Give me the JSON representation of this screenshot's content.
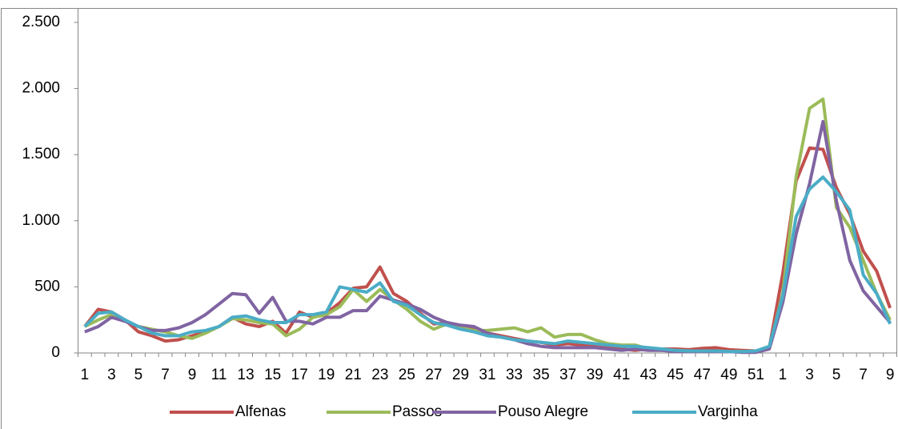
{
  "chart_data": {
    "type": "line",
    "categories": [
      "1",
      null,
      "3",
      null,
      "5",
      null,
      "7",
      null,
      "9",
      null,
      "11",
      null,
      "13",
      null,
      "15",
      null,
      "17",
      null,
      "19",
      null,
      "21",
      null,
      "23",
      null,
      "25",
      null,
      "27",
      null,
      "29",
      null,
      "31",
      null,
      "33",
      null,
      "35",
      null,
      "37",
      null,
      "39",
      null,
      "41",
      null,
      "43",
      null,
      "45",
      null,
      "47",
      null,
      "49",
      null,
      "51",
      null,
      "1",
      null,
      "3",
      null,
      "5",
      null,
      "7",
      null,
      "9"
    ],
    "series": [
      {
        "name": "Alfenas",
        "color": "#c0504d",
        "values": [
          200,
          330,
          310,
          250,
          160,
          130,
          90,
          100,
          130,
          160,
          200,
          270,
          220,
          200,
          240,
          150,
          310,
          270,
          300,
          380,
          490,
          500,
          650,
          450,
          390,
          300,
          220,
          230,
          200,
          180,
          150,
          130,
          110,
          90,
          80,
          60,
          70,
          60,
          50,
          40,
          30,
          20,
          30,
          30,
          30,
          25,
          35,
          40,
          25,
          20,
          15,
          40,
          600,
          1300,
          1550,
          1540,
          1250,
          1050,
          770,
          620,
          340
        ]
      },
      {
        "name": "Passos",
        "color": "#9bbb59",
        "values": [
          200,
          250,
          290,
          240,
          200,
          180,
          160,
          130,
          110,
          150,
          200,
          260,
          250,
          230,
          220,
          130,
          180,
          270,
          290,
          350,
          480,
          390,
          480,
          400,
          330,
          240,
          180,
          220,
          190,
          170,
          170,
          180,
          190,
          160,
          190,
          120,
          140,
          140,
          100,
          70,
          60,
          60,
          30,
          30,
          20,
          15,
          15,
          15,
          10,
          10,
          10,
          40,
          450,
          1330,
          1850,
          1920,
          1100,
          950,
          700,
          450,
          250
        ]
      },
      {
        "name": "Pouso Alegre",
        "color": "#8064a2",
        "values": [
          160,
          200,
          270,
          240,
          200,
          170,
          170,
          190,
          230,
          290,
          370,
          450,
          440,
          300,
          420,
          240,
          240,
          220,
          270,
          270,
          320,
          320,
          430,
          400,
          370,
          330,
          270,
          230,
          210,
          200,
          150,
          120,
          100,
          70,
          50,
          40,
          40,
          40,
          40,
          30,
          20,
          30,
          20,
          20,
          10,
          10,
          10,
          10,
          10,
          5,
          5,
          30,
          380,
          900,
          1280,
          1750,
          1150,
          700,
          470,
          350,
          230
        ]
      },
      {
        "name": "Varginha",
        "color": "#4bacc6",
        "values": [
          200,
          300,
          310,
          250,
          200,
          150,
          130,
          130,
          160,
          170,
          200,
          270,
          280,
          250,
          230,
          230,
          290,
          290,
          310,
          500,
          480,
          460,
          530,
          390,
          360,
          290,
          230,
          210,
          180,
          160,
          130,
          120,
          100,
          90,
          80,
          70,
          90,
          80,
          70,
          60,
          50,
          50,
          40,
          30,
          20,
          15,
          15,
          15,
          10,
          10,
          15,
          50,
          430,
          1030,
          1240,
          1330,
          1220,
          1080,
          590,
          450,
          220
        ]
      }
    ],
    "ylim": [
      0,
      2500
    ],
    "yticks": [
      0,
      500,
      {
        "value": 1000,
        "label": "1.000"
      },
      {
        "value": 1500,
        "label": "1.500"
      },
      {
        "value": 2000,
        "label": "2.000"
      },
      {
        "value": 2500,
        "label": "2.500"
      }
    ],
    "grid": false
  }
}
